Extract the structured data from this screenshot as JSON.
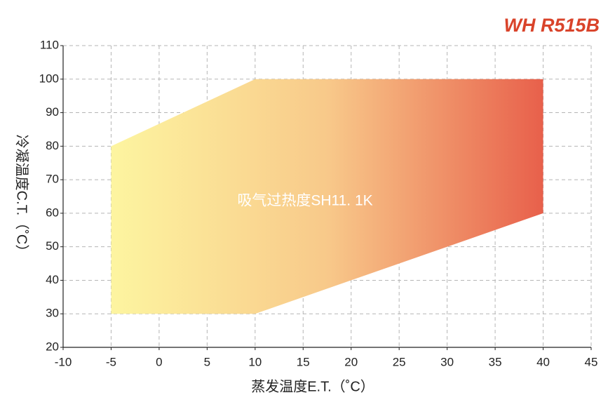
{
  "chart_data": {
    "type": "area",
    "title": "WH R515B",
    "annotation": "吸气过热度SH11. 1K",
    "x_label": "蒸发温度E.T.（˚C）",
    "y_label": "冷凝温度C.T.（˚C）",
    "x": [
      -5,
      -5,
      10,
      40,
      40,
      10
    ],
    "values": [
      30,
      80,
      100,
      100,
      60,
      30
    ],
    "colors": [
      "#fdf5a0",
      "#f8c98a",
      "#e8604b"
    ],
    "title_color": "#d9432a",
    "xlim": [
      -10,
      45
    ],
    "xticks": [
      -10,
      -5,
      0,
      5,
      10,
      15,
      20,
      25,
      30,
      35,
      40,
      45
    ],
    "ylim": [
      20,
      110
    ],
    "yticks": [
      20,
      30,
      40,
      50,
      60,
      70,
      80,
      90,
      100,
      110
    ],
    "grid": true
  }
}
